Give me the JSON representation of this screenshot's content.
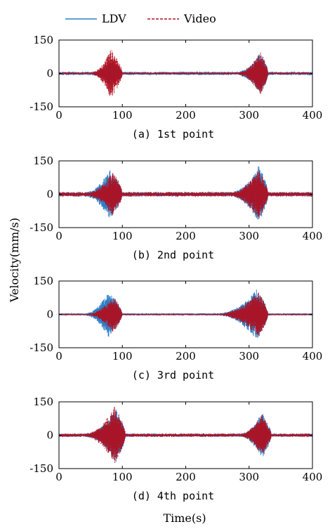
{
  "figure": {
    "ylabel": "Velocity(mm/s)",
    "xlabel": "Time(s)",
    "legend": {
      "position": "top-center",
      "items": [
        {
          "label": "LDV",
          "color": "#2f7fc7",
          "style": "solid"
        },
        {
          "label": "Video",
          "color": "#b01020",
          "style": "dashed"
        }
      ]
    }
  },
  "chart_data": [
    {
      "type": "line",
      "caption": "(a) 1st point",
      "xlim": [
        0,
        400
      ],
      "ylim": [
        -150,
        150
      ],
      "xticks": [
        "0",
        "100",
        "200",
        "300",
        "400"
      ],
      "yticks": [
        "150",
        "0",
        "-150"
      ],
      "grid": false,
      "series": [
        {
          "name": "LDV",
          "color": "#2f7fc7",
          "bursts": [
            {
              "start": 50,
              "peak": 82,
              "end": 100,
              "amp": 55
            },
            {
              "start": 280,
              "peak": 318,
              "end": 330,
              "amp": 90
            }
          ],
          "noise": 6
        },
        {
          "name": "Video",
          "color": "#b01020",
          "bursts": [
            {
              "start": 50,
              "peak": 82,
              "end": 100,
              "amp": 110
            },
            {
              "start": 280,
              "peak": 318,
              "end": 330,
              "amp": 95
            }
          ],
          "noise": 4
        }
      ]
    },
    {
      "type": "line",
      "caption": "(b) 2nd point",
      "xlim": [
        0,
        400
      ],
      "ylim": [
        -150,
        150
      ],
      "xticks": [
        "0",
        "100",
        "200",
        "300",
        "400"
      ],
      "yticks": [
        "150",
        "0",
        "-150"
      ],
      "grid": false,
      "series": [
        {
          "name": "LDV",
          "color": "#2f7fc7",
          "bursts": [
            {
              "start": 40,
              "peak": 80,
              "end": 100,
              "amp": 105
            },
            {
              "start": 270,
              "peak": 315,
              "end": 330,
              "amp": 120
            }
          ],
          "noise": 8
        },
        {
          "name": "Video",
          "color": "#b01020",
          "bursts": [
            {
              "start": 45,
              "peak": 85,
              "end": 100,
              "amp": 95
            },
            {
              "start": 270,
              "peak": 315,
              "end": 330,
              "amp": 110
            }
          ],
          "noise": 8
        }
      ]
    },
    {
      "type": "line",
      "caption": "(c) 3rd point",
      "xlim": [
        0,
        400
      ],
      "ylim": [
        -150,
        150
      ],
      "xticks": [
        "0",
        "100",
        "200",
        "300",
        "400"
      ],
      "yticks": [
        "150",
        "0",
        "-150"
      ],
      "grid": false,
      "series": [
        {
          "name": "LDV",
          "color": "#2f7fc7",
          "bursts": [
            {
              "start": 40,
              "peak": 78,
              "end": 100,
              "amp": 100
            },
            {
              "start": 250,
              "peak": 312,
              "end": 330,
              "amp": 110
            }
          ],
          "noise": 4
        },
        {
          "name": "Video",
          "color": "#b01020",
          "bursts": [
            {
              "start": 45,
              "peak": 85,
              "end": 100,
              "amp": 80
            },
            {
              "start": 250,
              "peak": 315,
              "end": 330,
              "amp": 100
            }
          ],
          "noise": 3
        }
      ]
    },
    {
      "type": "line",
      "caption": "(d) 4th point",
      "xlim": [
        0,
        400
      ],
      "ylim": [
        -150,
        150
      ],
      "xticks": [
        "0",
        "100",
        "200",
        "300",
        "400"
      ],
      "yticks": [
        "150",
        "0",
        "-150"
      ],
      "grid": false,
      "series": [
        {
          "name": "LDV",
          "color": "#2f7fc7",
          "bursts": [
            {
              "start": 40,
              "peak": 90,
              "end": 105,
              "amp": 115
            },
            {
              "start": 285,
              "peak": 320,
              "end": 335,
              "amp": 100
            }
          ],
          "noise": 6
        },
        {
          "name": "Video",
          "color": "#b01020",
          "bursts": [
            {
              "start": 40,
              "peak": 88,
              "end": 105,
              "amp": 125
            },
            {
              "start": 285,
              "peak": 320,
              "end": 335,
              "amp": 90
            }
          ],
          "noise": 6
        }
      ]
    }
  ]
}
